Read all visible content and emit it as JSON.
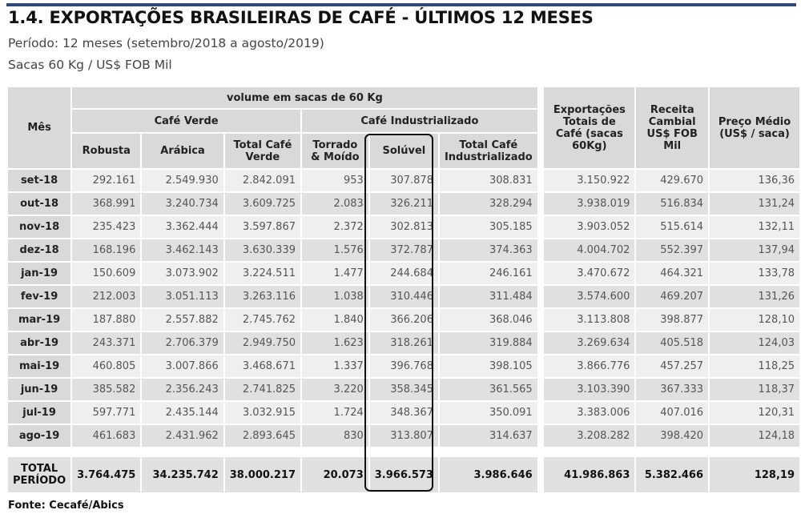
{
  "title": "1.4. EXPORTAÇÕES BRASILEIRAS DE CAFÉ - ÚLTIMOS 12 MESES",
  "subtitle1": "Período: 12 meses (setembro/2018 a agosto/2019)",
  "subtitle2": "Sacas 60 Kg / US$ FOB Mil",
  "accent_color": "#2e4a7a",
  "table": {
    "h_mes": "Mês",
    "h_volume": "volume em sacas de 60 Kg",
    "h_cafe_verde": "Café Verde",
    "h_cafe_ind": "Café Industrializado",
    "h_robusta": "Robusta",
    "h_arabica": "Arábica",
    "h_total_verde": "Total Café Verde",
    "h_torrado": "Torrado & Moído",
    "h_soluvel": "Solúvel",
    "h_total_ind": "Total Café Industrializado",
    "h_export": "Exportações Totais de Café (sacas 60Kg)",
    "h_receita": "Receita Cambial US$ FOB Mil",
    "h_preco": "Preço Médio (US$ / saca)",
    "rows": [
      [
        "set-18",
        "292.161",
        "2.549.930",
        "2.842.091",
        "953",
        "307.878",
        "308.831",
        "3.150.922",
        "429.670",
        "136,36"
      ],
      [
        "out-18",
        "368.991",
        "3.240.734",
        "3.609.725",
        "2.083",
        "326.211",
        "328.294",
        "3.938.019",
        "516.834",
        "131,24"
      ],
      [
        "nov-18",
        "235.423",
        "3.362.444",
        "3.597.867",
        "2.372",
        "302.813",
        "305.185",
        "3.903.052",
        "515.614",
        "132,11"
      ],
      [
        "dez-18",
        "168.196",
        "3.462.143",
        "3.630.339",
        "1.576",
        "372.787",
        "374.363",
        "4.004.702",
        "552.397",
        "137,94"
      ],
      [
        "jan-19",
        "150.609",
        "3.073.902",
        "3.224.511",
        "1.477",
        "244.684",
        "246.161",
        "3.470.672",
        "464.321",
        "133,78"
      ],
      [
        "fev-19",
        "212.003",
        "3.051.113",
        "3.263.116",
        "1.038",
        "310.446",
        "311.484",
        "3.574.600",
        "469.207",
        "131,26"
      ],
      [
        "mar-19",
        "187.880",
        "2.557.882",
        "2.745.762",
        "1.840",
        "366.206",
        "368.046",
        "3.113.808",
        "398.877",
        "128,10"
      ],
      [
        "abr-19",
        "243.371",
        "2.706.379",
        "2.949.750",
        "1.623",
        "318.261",
        "319.884",
        "3.269.634",
        "405.518",
        "124,03"
      ],
      [
        "mai-19",
        "460.805",
        "3.007.866",
        "3.468.671",
        "1.337",
        "396.768",
        "398.105",
        "3.866.776",
        "457.257",
        "118,25"
      ],
      [
        "jun-19",
        "385.582",
        "2.356.243",
        "2.741.825",
        "3.220",
        "358.345",
        "361.565",
        "3.103.390",
        "367.333",
        "118,37"
      ],
      [
        "jul-19",
        "597.771",
        "2.435.144",
        "3.032.915",
        "1.724",
        "348.367",
        "350.091",
        "3.383.006",
        "407.016",
        "120,31"
      ],
      [
        "ago-19",
        "461.683",
        "2.431.962",
        "2.893.645",
        "830",
        "313.807",
        "314.637",
        "3.208.282",
        "398.420",
        "124,18"
      ]
    ],
    "total": [
      "TOTAL PERÍODO",
      "3.764.475",
      "34.235.742",
      "38.000.217",
      "20.073",
      "3.966.573",
      "3.986.646",
      "41.986.863",
      "5.382.466",
      "128,19"
    ]
  },
  "source": "Fonte: Cecafé/Abics"
}
